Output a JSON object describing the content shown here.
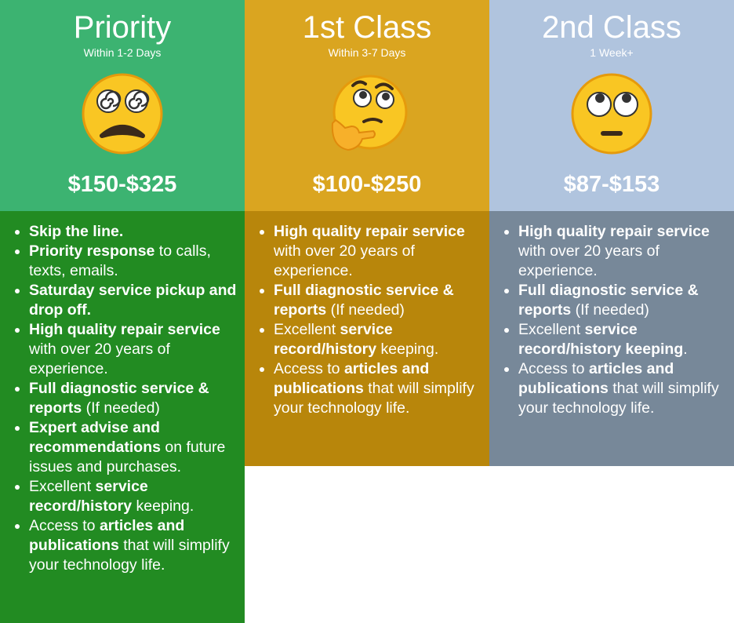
{
  "colors": {
    "priority_header": "#3cb371",
    "priority_body": "#228b22",
    "first_header": "#daa520",
    "first_body": "#b8860b",
    "second_header": "#b0c4de",
    "second_body": "#778899",
    "text": "#ffffff"
  },
  "tiers": [
    {
      "name": "Priority",
      "timeframe": "Within 1-2 Days",
      "emoji": "dizzy-face-icon",
      "price": "$150-$325",
      "features": [
        [
          {
            "t": "Skip the line.",
            "b": true
          }
        ],
        [
          {
            "t": "Priority response",
            "b": true
          },
          {
            "t": " to calls, texts, emails.",
            "b": false
          }
        ],
        [
          {
            "t": "Saturday service pickup and drop off.",
            "b": true
          }
        ],
        [
          {
            "t": "High quality repair service",
            "b": true
          },
          {
            "t": " with over 20 years of experience.",
            "b": false
          }
        ],
        [
          {
            "t": "Full diagnostic service & reports",
            "b": true
          },
          {
            "t": " (If needed)",
            "b": false
          }
        ],
        [
          {
            "t": "Expert advise and recommendations",
            "b": true
          },
          {
            "t": " on future issues and purchases.",
            "b": false
          }
        ],
        [
          {
            "t": "Excellent ",
            "b": false
          },
          {
            "t": "service record/history",
            "b": true
          },
          {
            "t": " keeping.",
            "b": false
          }
        ],
        [
          {
            "t": "Access to ",
            "b": false
          },
          {
            "t": "articles and publications",
            "b": true
          },
          {
            "t": " that will simplify your technology life.",
            "b": false
          }
        ]
      ]
    },
    {
      "name": "1st Class",
      "timeframe": "Within 3-7 Days",
      "emoji": "thinking-face-icon",
      "price": "$100-$250",
      "features": [
        [
          {
            "t": "High quality repair service",
            "b": true
          },
          {
            "t": " with over 20 years of experience.",
            "b": false
          }
        ],
        [
          {
            "t": "Full diagnostic service & reports",
            "b": true
          },
          {
            "t": " (If needed)",
            "b": false
          }
        ],
        [
          {
            "t": "Excellent ",
            "b": false
          },
          {
            "t": "service record/history",
            "b": true
          },
          {
            "t": " keeping.",
            "b": false
          }
        ],
        [
          {
            "t": "Access to ",
            "b": false
          },
          {
            "t": "articles and publications",
            "b": true
          },
          {
            "t": " that will simplify your technology life.",
            "b": false
          }
        ]
      ]
    },
    {
      "name": "2nd Class",
      "timeframe": "1 Week+",
      "emoji": "eye-roll-face-icon",
      "price": "$87-$153",
      "features": [
        [
          {
            "t": "High quality repair service",
            "b": true
          },
          {
            "t": " with over 20 years of experience.",
            "b": false
          }
        ],
        [
          {
            "t": "Full diagnostic service & reports",
            "b": true
          },
          {
            "t": " (If needed)",
            "b": false
          }
        ],
        [
          {
            "t": "Excellent ",
            "b": false
          },
          {
            "t": "service record/history keeping",
            "b": true
          },
          {
            "t": ".",
            "b": false
          }
        ],
        [
          {
            "t": "Access to ",
            "b": false
          },
          {
            "t": "articles and publications",
            "b": true
          },
          {
            "t": " that will simplify your technology life.",
            "b": false
          }
        ]
      ]
    }
  ]
}
